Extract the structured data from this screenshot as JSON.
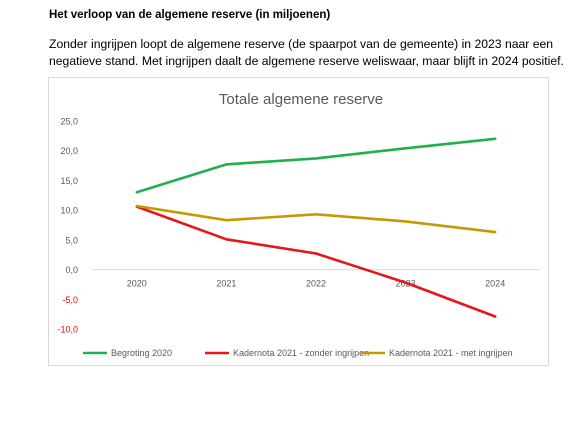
{
  "heading": "Het verloop van de algemene reserve (in miljoenen)",
  "intro": "Zonder ingrijpen loopt de algemene reserve (de spaarpot van de gemeente) in 2023 naar een negatieve stand. Met ingrijpen daalt de algemene reserve weliswaar, maar blijft in 2024 positief.",
  "chart_data": {
    "type": "line",
    "title": "Totale algemene reserve",
    "xlabel": "",
    "ylabel": "",
    "categories": [
      "2020",
      "2021",
      "2022",
      "2023",
      "2024"
    ],
    "ylim": [
      -10,
      25
    ],
    "yticks": [
      "25,0",
      "20,0",
      "15,0",
      "10,0",
      "5,0",
      "0,0",
      "-5,0",
      "-10,0"
    ],
    "ytick_values": [
      25,
      20,
      15,
      10,
      5,
      0,
      -5,
      -10
    ],
    "negative_tick_color": "#ff0000",
    "grid": false,
    "legend_position": "bottom",
    "series": [
      {
        "name": "Begroting 2020",
        "color": "#1fb14c",
        "values": [
          13.0,
          17.7,
          18.7,
          20.4,
          22.0
        ]
      },
      {
        "name": "Kadernota 2021 - zonder ingrijpen",
        "color": "#e8151b",
        "values": [
          10.6,
          5.1,
          2.7,
          -2.2,
          -7.9
        ]
      },
      {
        "name": "Kadernota 2021 - met ingrijpen",
        "color": "#c49a00",
        "values": [
          10.7,
          8.3,
          9.3,
          8.1,
          6.3
        ]
      }
    ]
  }
}
